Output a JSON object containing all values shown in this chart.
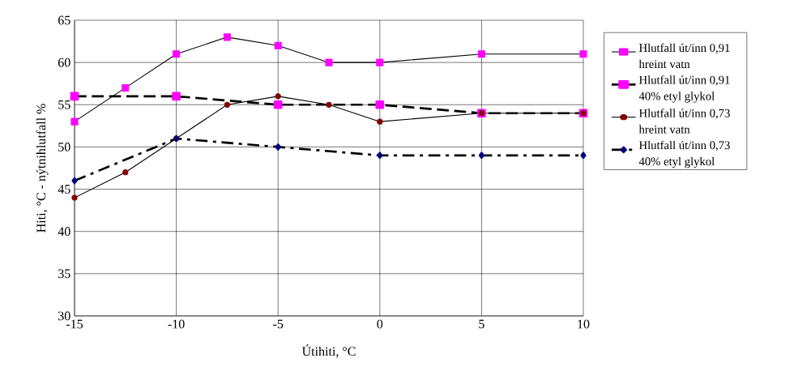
{
  "chart_data": {
    "type": "line",
    "xlabel": "Útihiti,  °C",
    "ylabel": "Hiti,  °C    -    nýtnihlutfall %",
    "xlim": [
      -15,
      10
    ],
    "xticks": [
      -15,
      -10,
      -5,
      0,
      5,
      10
    ],
    "ylim": [
      30,
      65
    ],
    "yticks": [
      30,
      35,
      40,
      45,
      50,
      55,
      60,
      65
    ],
    "grid": true,
    "legend": "right",
    "series": [
      {
        "name": "Hlutfall út/inn 0,91 hreint vatn",
        "color": "#ff00ff",
        "marker": "square",
        "line_style": "solid",
        "x": [
          -15,
          -12.5,
          -10,
          -7.5,
          -5,
          -2.5,
          0,
          5,
          10
        ],
        "values": [
          53,
          57,
          61,
          63,
          62,
          60,
          60,
          61,
          61
        ]
      },
      {
        "name": "Hlutfall út/inn 0,91 40% etyl glykol",
        "color": "#ff00ff",
        "marker": "square",
        "line_style": "dashed",
        "x": [
          -15,
          -10,
          -5,
          0,
          5,
          10
        ],
        "values": [
          56,
          56,
          55,
          55,
          54,
          54
        ]
      },
      {
        "name": "Hlutfall út/inn 0,73 hreint vatn",
        "color": "#800000",
        "marker": "circle",
        "line_style": "solid",
        "x": [
          -15,
          -12.5,
          -10,
          -7.5,
          -5,
          -2.5,
          0,
          5,
          10
        ],
        "values": [
          44,
          47,
          51,
          55,
          56,
          55,
          53,
          54,
          54
        ]
      },
      {
        "name": "Hlutfall út/inn 0,73 40% etyl glykol",
        "color": "#000080",
        "marker": "diamond",
        "line_style": "dashdot",
        "x": [
          -15,
          -10,
          -5,
          0,
          5,
          10
        ],
        "values": [
          46,
          51,
          50,
          49,
          49,
          49
        ]
      }
    ]
  }
}
